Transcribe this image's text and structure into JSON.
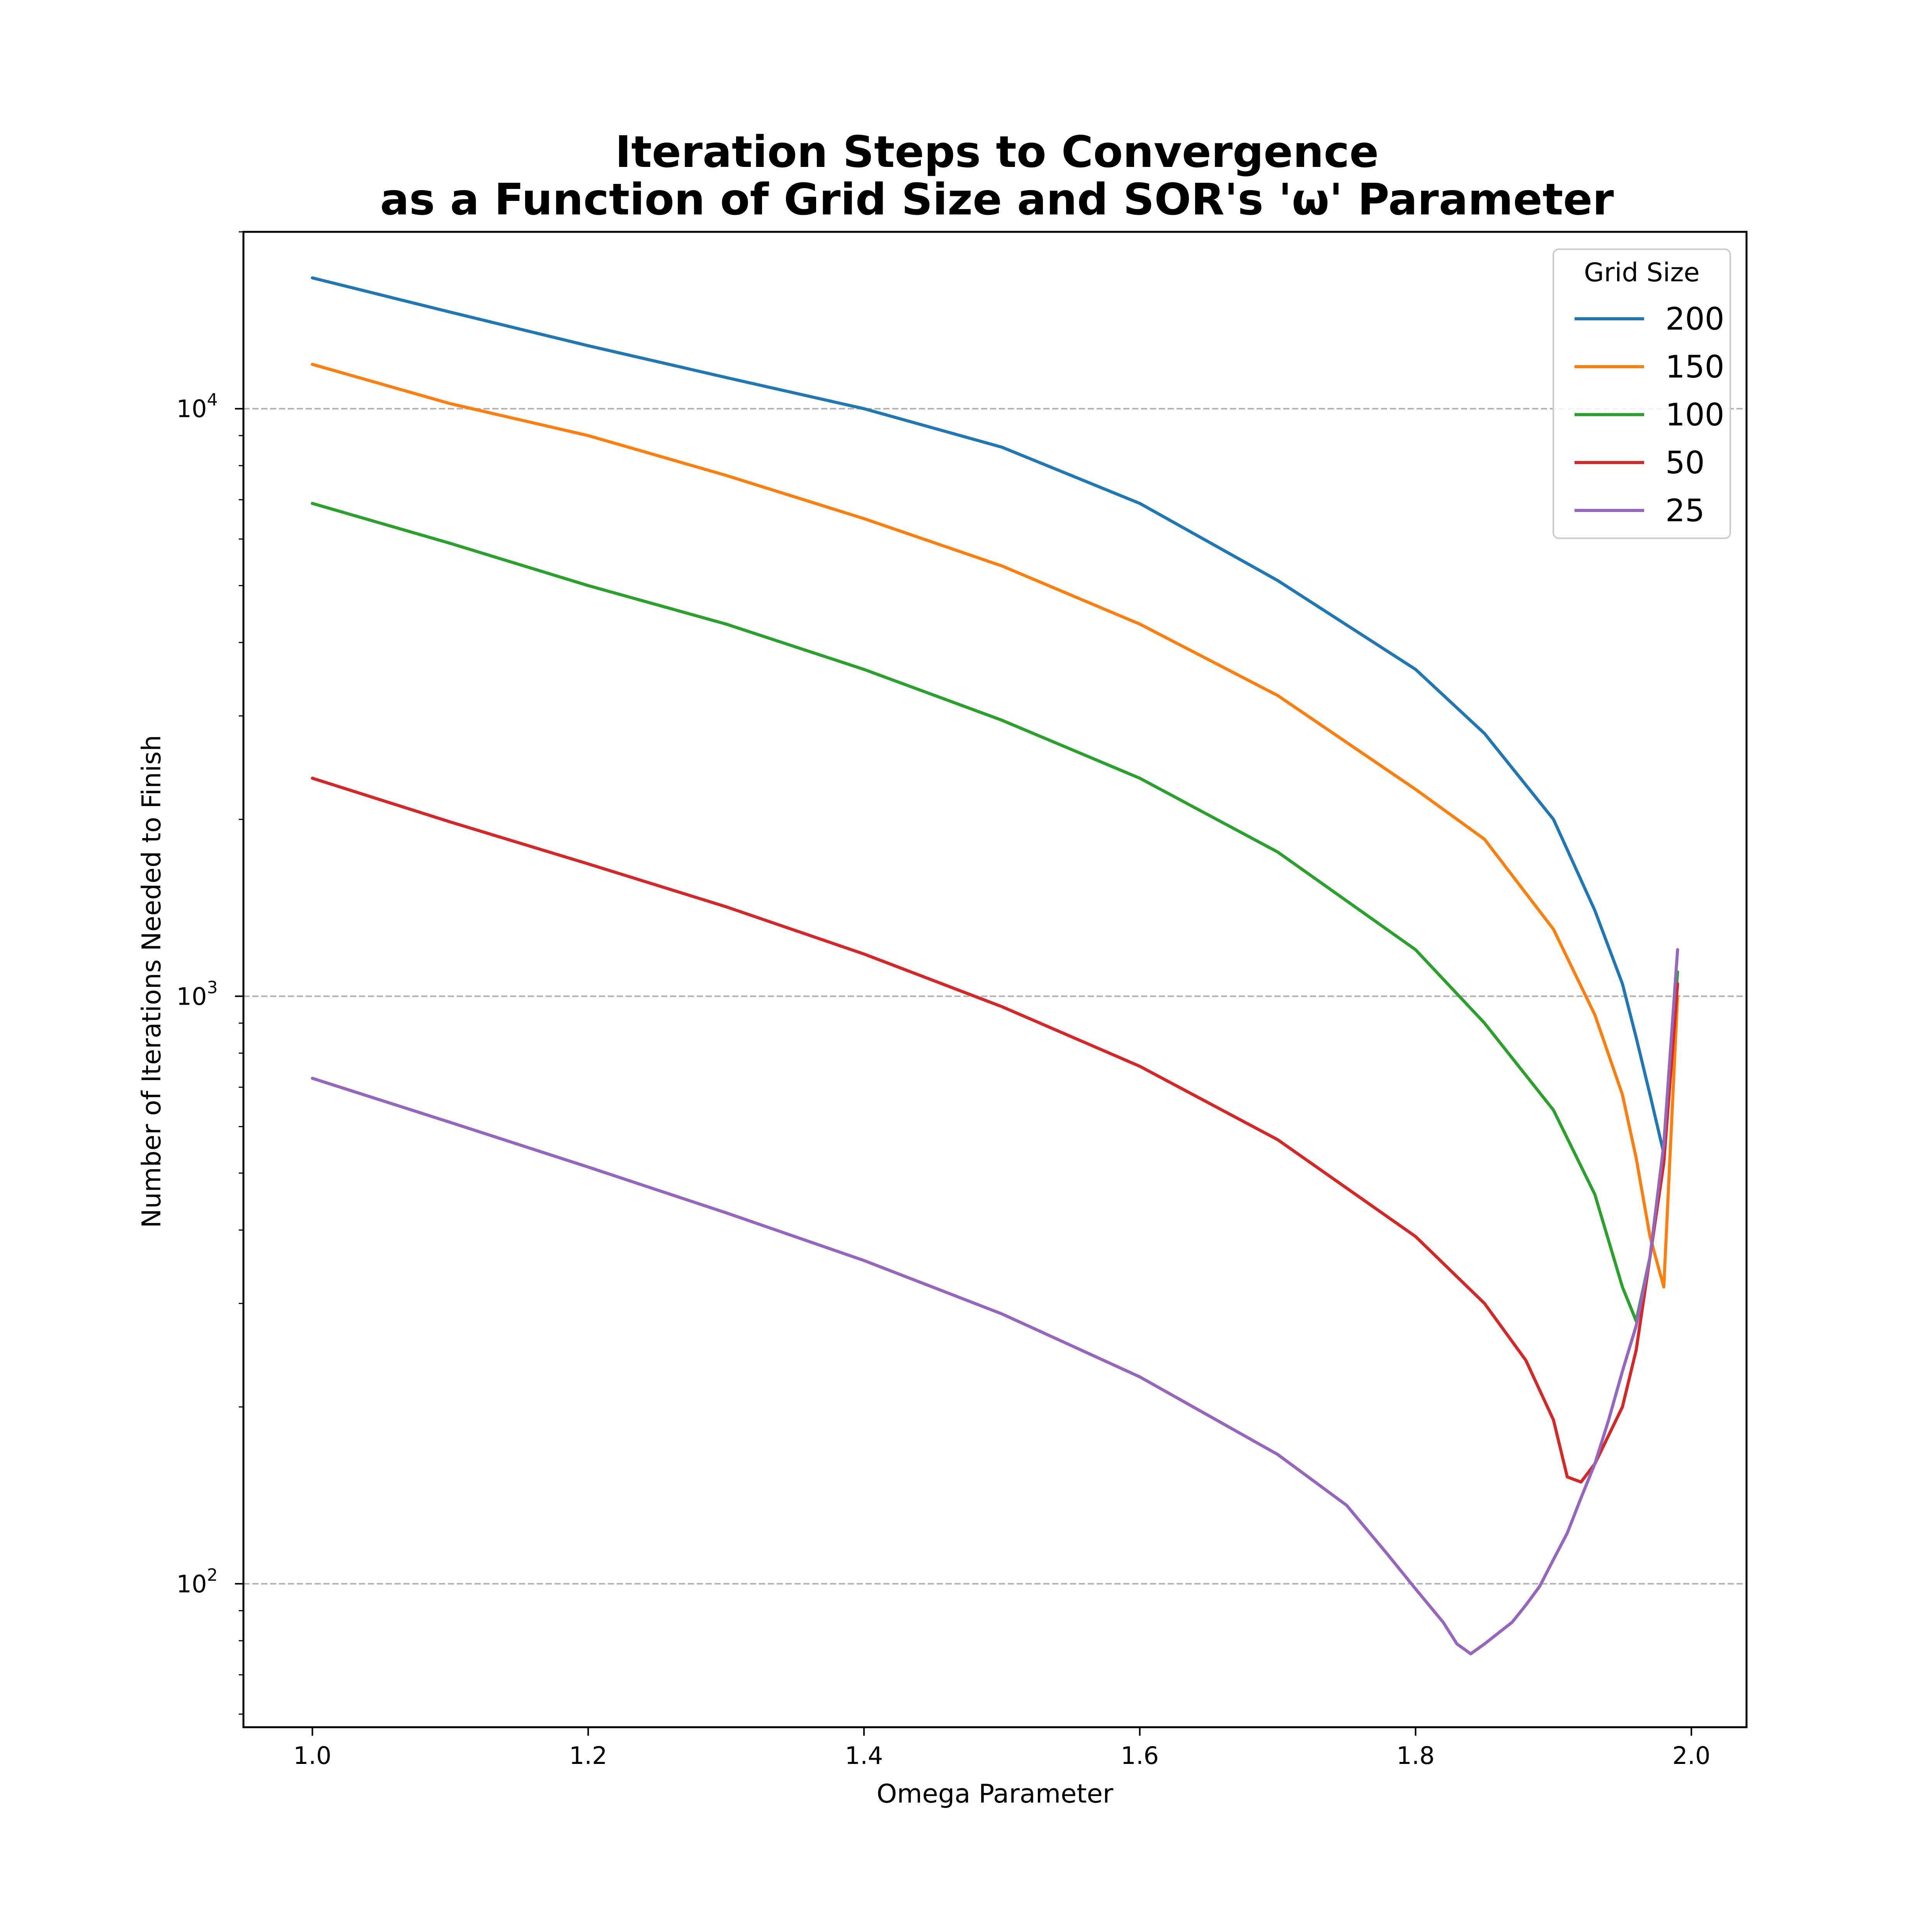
{
  "chart_data": {
    "type": "line",
    "title_line1": "Iteration Steps to Convergence",
    "title_line2": "as a Function of Grid Size and SOR's 'ω' Parameter",
    "xlabel": "Omega Parameter",
    "ylabel": "Number of Iterations Needed to Finish",
    "xlim": [
      0.95,
      2.04
    ],
    "ylim": [
      57,
      20000
    ],
    "yscale": "log",
    "xticks": [
      1.0,
      1.2,
      1.4,
      1.6,
      1.8,
      2.0
    ],
    "xtick_labels": [
      "1.0",
      "1.2",
      "1.4",
      "1.6",
      "1.8",
      "2.0"
    ],
    "yticks": [
      100,
      1000,
      10000
    ],
    "ytick_base": "10",
    "ytick_exponents": [
      "2",
      "3",
      "4"
    ],
    "grid": "horizontal dashed at major y ticks",
    "legend": {
      "title": "Grid Size",
      "placement": "top-right"
    },
    "series": [
      {
        "name": "200",
        "color": "#1f77b4",
        "points": [
          [
            1.0,
            16700
          ],
          [
            1.1,
            14600
          ],
          [
            1.2,
            12800
          ],
          [
            1.3,
            11300
          ],
          [
            1.4,
            10000
          ],
          [
            1.5,
            8600
          ],
          [
            1.6,
            6900
          ],
          [
            1.7,
            5100
          ],
          [
            1.8,
            3600
          ],
          [
            1.85,
            2800
          ],
          [
            1.9,
            2000
          ],
          [
            1.93,
            1400
          ],
          [
            1.95,
            1050
          ],
          [
            1.96,
            850
          ],
          [
            1.97,
            680
          ],
          [
            1.98,
            540
          ]
        ]
      },
      {
        "name": "150",
        "color": "#ff7f0e",
        "points": [
          [
            1.0,
            11900
          ],
          [
            1.1,
            10200
          ],
          [
            1.2,
            9000
          ],
          [
            1.3,
            7700
          ],
          [
            1.4,
            6500
          ],
          [
            1.5,
            5400
          ],
          [
            1.6,
            4300
          ],
          [
            1.7,
            3250
          ],
          [
            1.8,
            2250
          ],
          [
            1.85,
            1850
          ],
          [
            1.9,
            1300
          ],
          [
            1.93,
            930
          ],
          [
            1.95,
            680
          ],
          [
            1.96,
            530
          ],
          [
            1.97,
            390
          ],
          [
            1.98,
            320
          ],
          [
            1.99,
            1000
          ]
        ]
      },
      {
        "name": "100",
        "color": "#2ca02c",
        "points": [
          [
            1.0,
            6900
          ],
          [
            1.1,
            5900
          ],
          [
            1.2,
            5000
          ],
          [
            1.3,
            4300
          ],
          [
            1.4,
            3600
          ],
          [
            1.5,
            2950
          ],
          [
            1.6,
            2350
          ],
          [
            1.7,
            1760
          ],
          [
            1.8,
            1200
          ],
          [
            1.85,
            900
          ],
          [
            1.9,
            640
          ],
          [
            1.93,
            460
          ],
          [
            1.95,
            320
          ],
          [
            1.96,
            280
          ],
          [
            1.97,
            360
          ],
          [
            1.98,
            550
          ],
          [
            1.99,
            1100
          ]
        ]
      },
      {
        "name": "50",
        "color": "#d62728",
        "points": [
          [
            1.0,
            2350
          ],
          [
            1.1,
            1980
          ],
          [
            1.2,
            1680
          ],
          [
            1.3,
            1420
          ],
          [
            1.4,
            1180
          ],
          [
            1.5,
            960
          ],
          [
            1.6,
            760
          ],
          [
            1.7,
            570
          ],
          [
            1.8,
            390
          ],
          [
            1.85,
            300
          ],
          [
            1.88,
            240
          ],
          [
            1.9,
            190
          ],
          [
            1.91,
            152
          ],
          [
            1.92,
            149
          ],
          [
            1.93,
            160
          ],
          [
            1.95,
            200
          ],
          [
            1.96,
            250
          ],
          [
            1.97,
            360
          ],
          [
            1.98,
            520
          ],
          [
            1.99,
            1050
          ]
        ]
      },
      {
        "name": "25",
        "color": "#9467bd",
        "points": [
          [
            1.0,
            725
          ],
          [
            1.1,
            610
          ],
          [
            1.2,
            512
          ],
          [
            1.3,
            428
          ],
          [
            1.4,
            355
          ],
          [
            1.5,
            288
          ],
          [
            1.6,
            225
          ],
          [
            1.7,
            166
          ],
          [
            1.75,
            136
          ],
          [
            1.78,
            112
          ],
          [
            1.8,
            98
          ],
          [
            1.82,
            86
          ],
          [
            1.83,
            79
          ],
          [
            1.84,
            76
          ],
          [
            1.85,
            79
          ],
          [
            1.87,
            86
          ],
          [
            1.88,
            92
          ],
          [
            1.89,
            99
          ],
          [
            1.9,
            110
          ],
          [
            1.91,
            122
          ],
          [
            1.92,
            140
          ],
          [
            1.93,
            160
          ],
          [
            1.94,
            190
          ],
          [
            1.95,
            230
          ],
          [
            1.96,
            275
          ],
          [
            1.97,
            360
          ],
          [
            1.98,
            560
          ],
          [
            1.99,
            1200
          ]
        ]
      }
    ]
  }
}
